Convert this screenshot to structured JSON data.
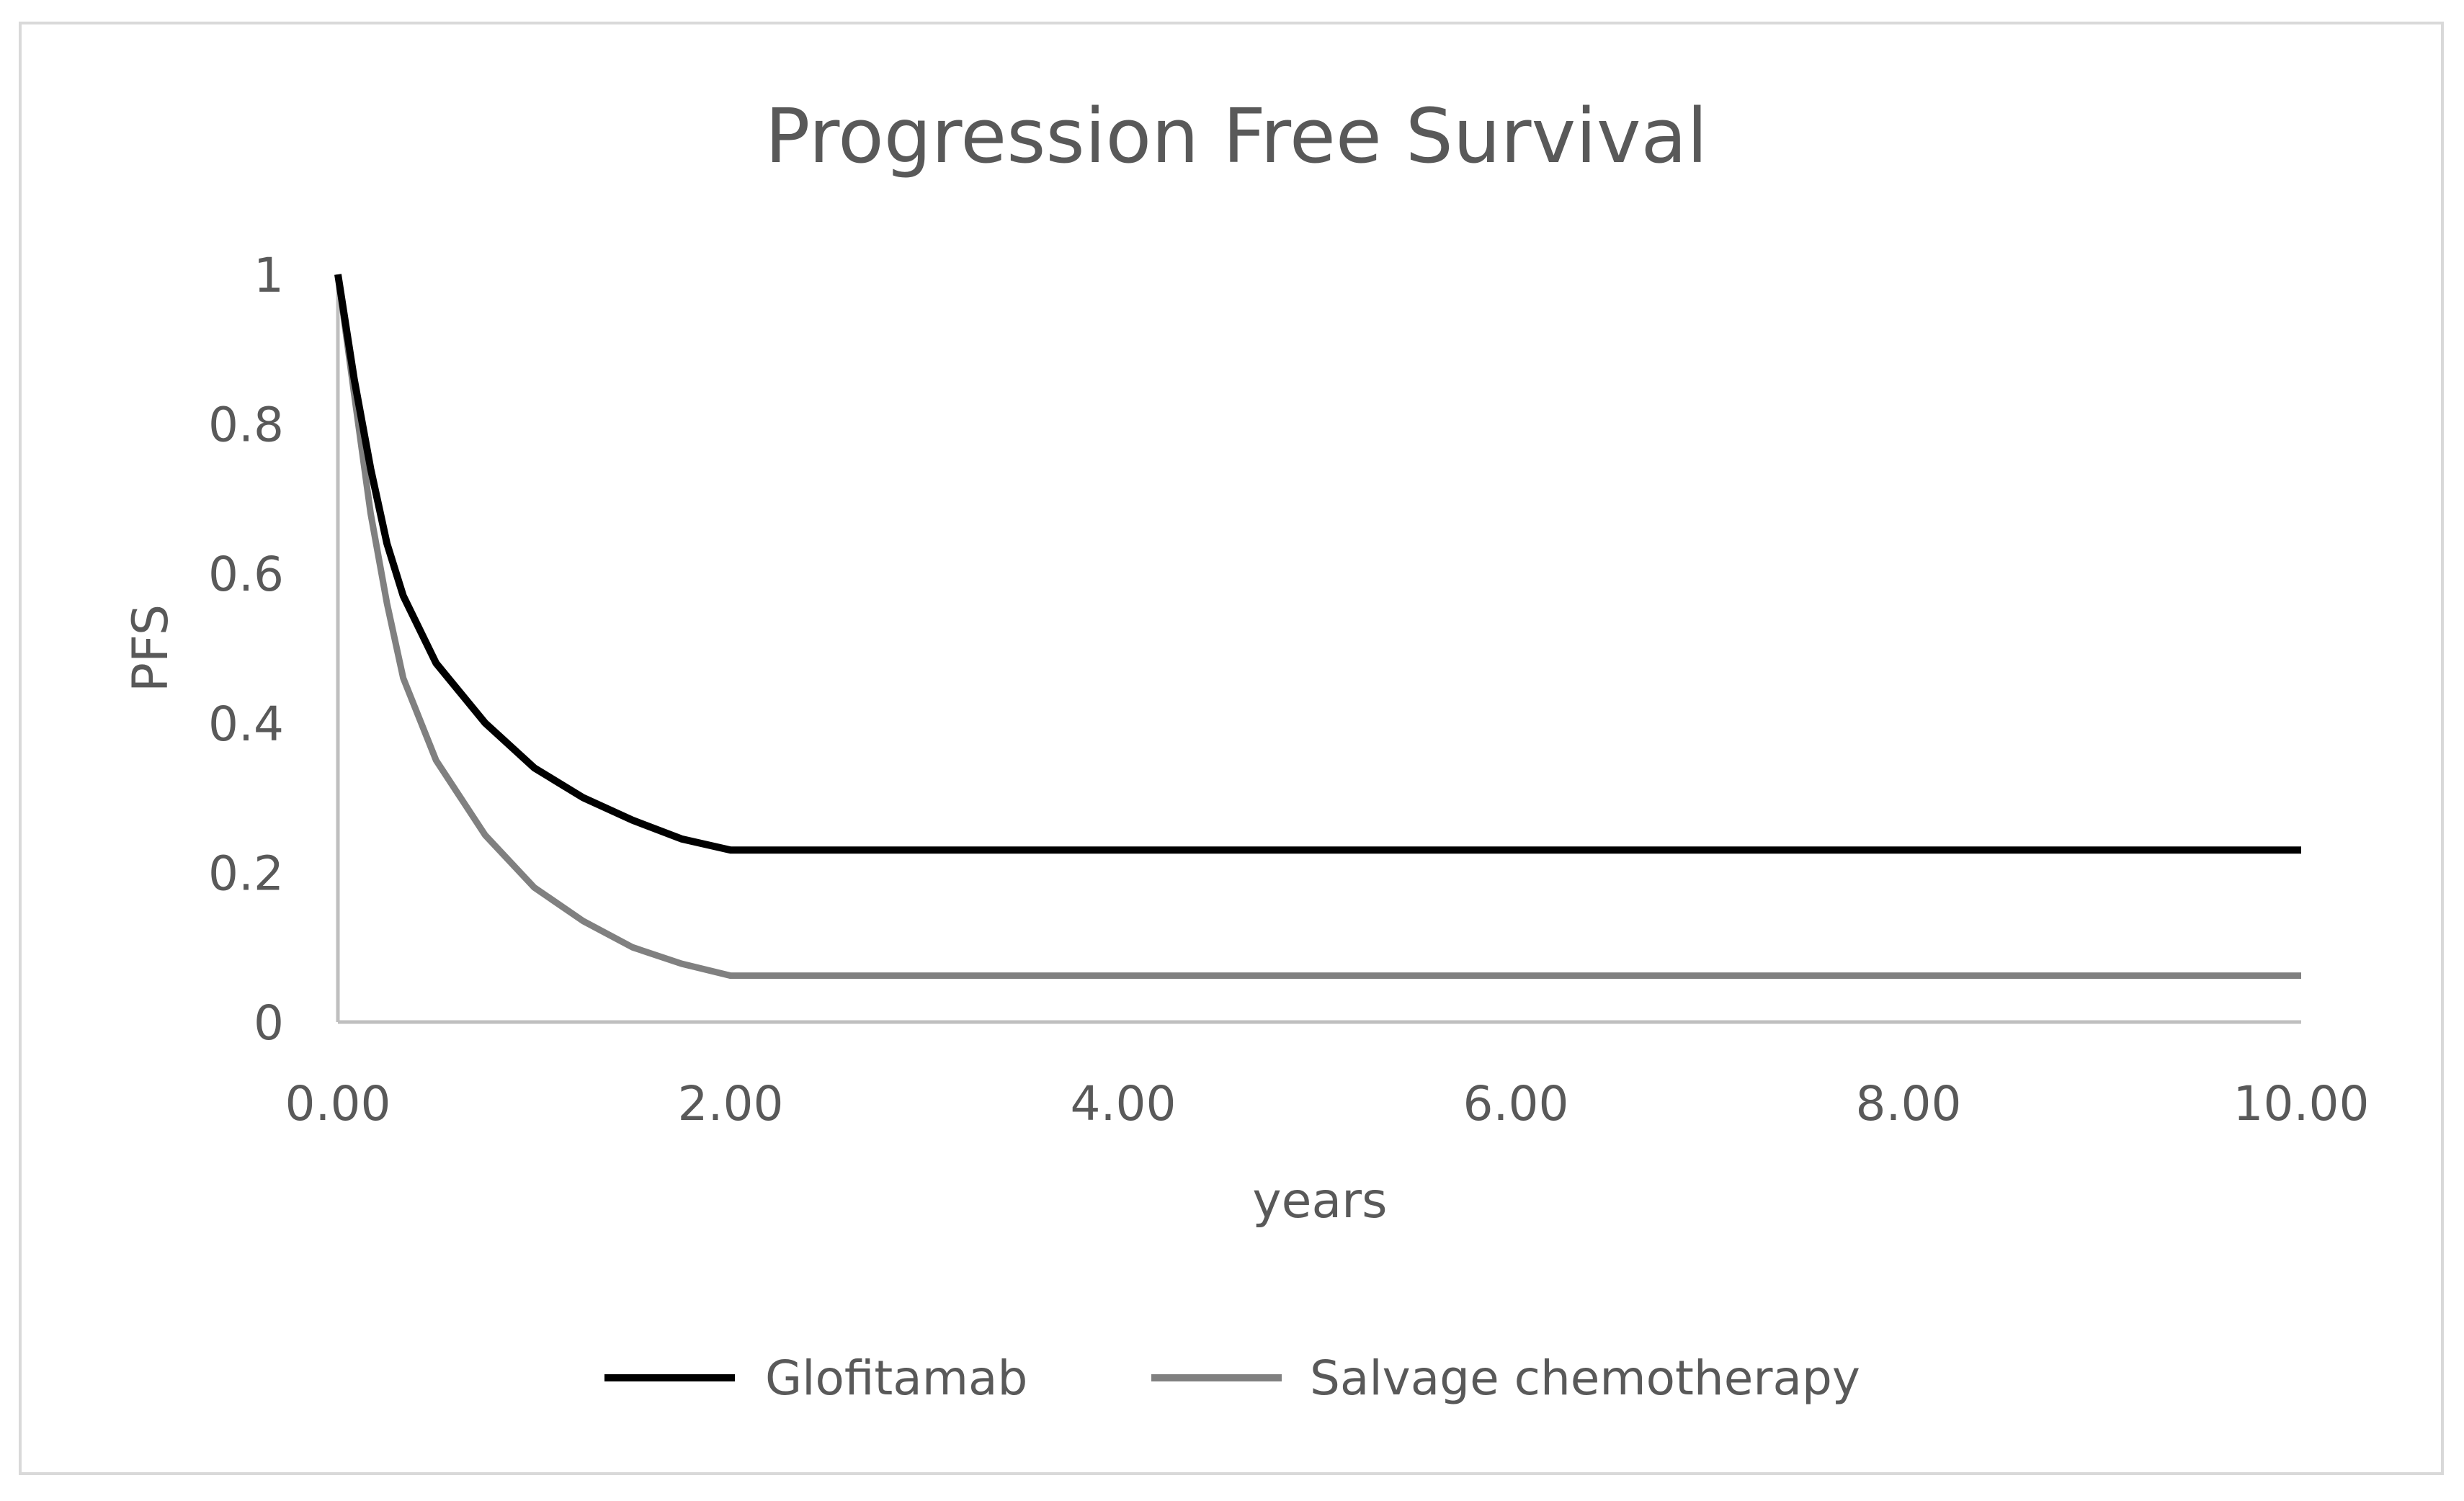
{
  "chart_data": {
    "type": "line",
    "title": "Progression Free Survival",
    "xlabel": "years",
    "ylabel": "PFS",
    "xlim": [
      0,
      10
    ],
    "ylim": [
      0,
      1
    ],
    "x_ticks": [
      "0.00",
      "2.00",
      "4.00",
      "6.00",
      "8.00",
      "10.00"
    ],
    "y_ticks": [
      "0",
      "0.2",
      "0.4",
      "0.6",
      "0.8",
      "1"
    ],
    "grid": false,
    "legend_position": "bottom",
    "series": [
      {
        "name": "Glofitamab",
        "color": "#000000",
        "x": [
          0,
          0.083,
          0.167,
          0.25,
          0.333,
          0.5,
          0.75,
          1.0,
          1.25,
          1.5,
          1.75,
          2.0,
          10.0
        ],
        "y": [
          1,
          0.86,
          0.74,
          0.64,
          0.57,
          0.48,
          0.4,
          0.34,
          0.3,
          0.27,
          0.245,
          0.23,
          0.23
        ]
      },
      {
        "name": "Salvage chemotherapy",
        "color": "#808080",
        "x": [
          0,
          0.083,
          0.167,
          0.25,
          0.333,
          0.5,
          0.75,
          1.0,
          1.25,
          1.5,
          1.75,
          2.0,
          10.0
        ],
        "y": [
          1,
          0.84,
          0.68,
          0.56,
          0.46,
          0.35,
          0.25,
          0.18,
          0.135,
          0.1,
          0.078,
          0.062,
          0.062
        ]
      }
    ],
    "axis_color": "#bfbfbf",
    "text_color": "#595959"
  }
}
